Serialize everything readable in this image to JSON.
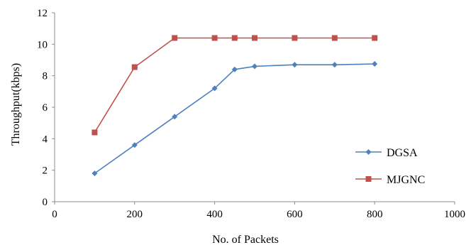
{
  "chart_data": {
    "type": "line",
    "xlabel": "No. of Packets",
    "ylabel": "Throughput(kbps)",
    "xlim": [
      0,
      1000
    ],
    "ylim": [
      0,
      12
    ],
    "xticks": [
      "0",
      "200",
      "400",
      "600",
      "800",
      "1000"
    ],
    "yticks": [
      "0",
      "2",
      "4",
      "6",
      "8",
      "10",
      "12"
    ],
    "grid": false,
    "legend": "right",
    "series": [
      {
        "name": "DGSA",
        "color": "#4f81bd",
        "marker": "diamond",
        "x": [
          100,
          200,
          300,
          400,
          450,
          500,
          600,
          700,
          800
        ],
        "y": [
          1.8,
          3.6,
          5.4,
          7.2,
          8.4,
          8.6,
          8.7,
          8.7,
          8.75
        ]
      },
      {
        "name": "MJGNC",
        "color": "#c0504d",
        "marker": "square",
        "x": [
          100,
          200,
          300,
          400,
          450,
          500,
          600,
          700,
          800
        ],
        "y": [
          4.4,
          8.55,
          10.4,
          10.4,
          10.4,
          10.4,
          10.4,
          10.4,
          10.4
        ]
      }
    ]
  }
}
